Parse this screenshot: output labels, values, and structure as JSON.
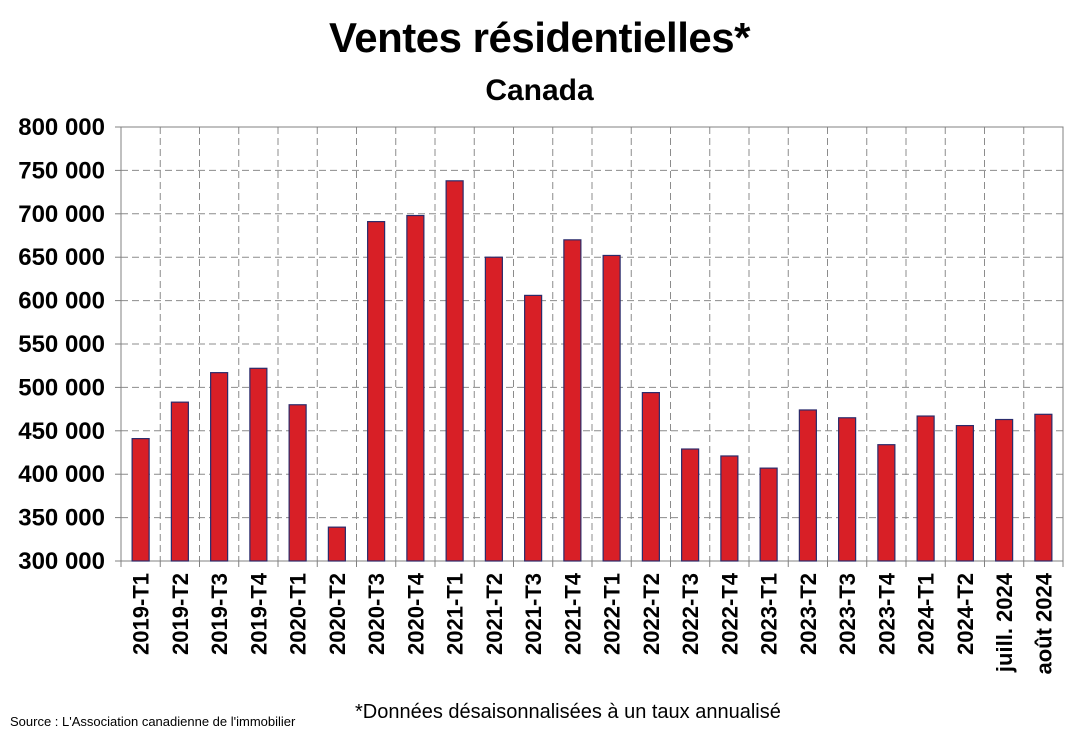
{
  "chart_data": {
    "type": "bar",
    "title": "Ventes résidentielles*",
    "subtitle": "Canada",
    "categories": [
      "2019-T1",
      "2019-T2",
      "2019-T3",
      "2019-T4",
      "2020-T1",
      "2020-T2",
      "2020-T3",
      "2020-T4",
      "2021-T1",
      "2021-T2",
      "2021-T3",
      "2021-T4",
      "2022-T1",
      "2022-T2",
      "2022-T3",
      "2022-T4",
      "2023-T1",
      "2023-T2",
      "2023-T3",
      "2023-T4",
      "2024-T1",
      "2024-T2",
      "juill. 2024",
      "août 2024"
    ],
    "values": [
      441000,
      483000,
      517000,
      522000,
      480000,
      339000,
      691000,
      698000,
      738000,
      650000,
      606000,
      670000,
      652000,
      494000,
      429000,
      421000,
      407000,
      474000,
      465000,
      434000,
      467000,
      456000,
      463000,
      469000
    ],
    "ylim": [
      300000,
      800000
    ],
    "yticks": [
      300000,
      350000,
      400000,
      450000,
      500000,
      550000,
      600000,
      650000,
      700000,
      750000,
      800000
    ],
    "ytick_labels": [
      "300 000",
      "350 000",
      "400 000",
      "450 000",
      "500 000",
      "550 000",
      "600 000",
      "650 000",
      "700 000",
      "750 000",
      "800 000"
    ],
    "grid": true,
    "bar_color": "#d81f26",
    "bar_edge_color": "#2b2b6b",
    "footnote": "*Données désaisonnalisées à un taux annualisé",
    "source": "Source : L'Association canadienne de l'immobilier"
  }
}
